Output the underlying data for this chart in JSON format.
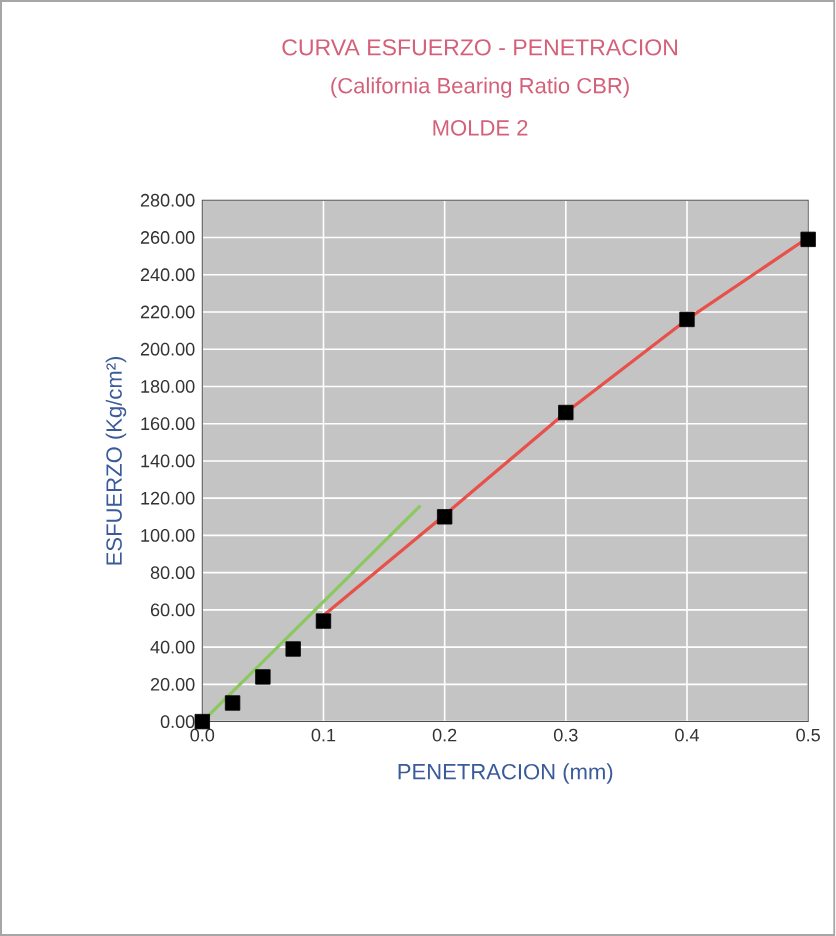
{
  "chart_data": {
    "type": "scatter",
    "title": "CURVA ESFUERZO - PENETRACION",
    "subtitle": "(California Bearing Ratio CBR)",
    "annotations": [
      "MOLDE 2"
    ],
    "xlabel": "PENETRACION (mm)",
    "ylabel": "ESFUERZO (Kg/cm²)",
    "xlim": [
      0,
      0.5
    ],
    "ylim": [
      0,
      280
    ],
    "xticks": [
      {
        "value": 0,
        "label": "0.0"
      },
      {
        "value": 0.1,
        "label": "0.1"
      },
      {
        "value": 0.2,
        "label": "0.2"
      },
      {
        "value": 0.3,
        "label": "0.3"
      },
      {
        "value": 0.4,
        "label": "0.4"
      },
      {
        "value": 0.5,
        "label": "0.5"
      }
    ],
    "yticks": [
      {
        "value": 0,
        "label": "0.00"
      },
      {
        "value": 20,
        "label": "20.00"
      },
      {
        "value": 40,
        "label": "40.00"
      },
      {
        "value": 60,
        "label": "60.00"
      },
      {
        "value": 80,
        "label": "80.00"
      },
      {
        "value": 100,
        "label": "100.00"
      },
      {
        "value": 120,
        "label": "120.00"
      },
      {
        "value": 140,
        "label": "140.00"
      },
      {
        "value": 160,
        "label": "160.00"
      },
      {
        "value": 180,
        "label": "180.00"
      },
      {
        "value": 200,
        "label": "200.00"
      },
      {
        "value": 220,
        "label": "220.00"
      },
      {
        "value": 240,
        "label": "240.00"
      },
      {
        "value": 260,
        "label": "260.00"
      },
      {
        "value": 280,
        "label": "280.00"
      }
    ],
    "grid": true,
    "series": [
      {
        "type": "line",
        "color": "#e8504a",
        "x": [
          0.1,
          0.2,
          0.3,
          0.4,
          0.5
        ],
        "values": [
          57,
          111,
          166,
          216,
          260
        ]
      },
      {
        "type": "line",
        "color": "#8cc860",
        "x": [
          0,
          0.18
        ],
        "values": [
          0,
          116
        ]
      },
      {
        "marker": "square",
        "color": "#000000",
        "x": [
          0,
          0.025,
          0.05,
          0.075,
          0.1,
          0.2,
          0.3,
          0.4,
          0.5
        ],
        "values": [
          0,
          10,
          24,
          39,
          54,
          110,
          166,
          216,
          259
        ]
      }
    ]
  }
}
